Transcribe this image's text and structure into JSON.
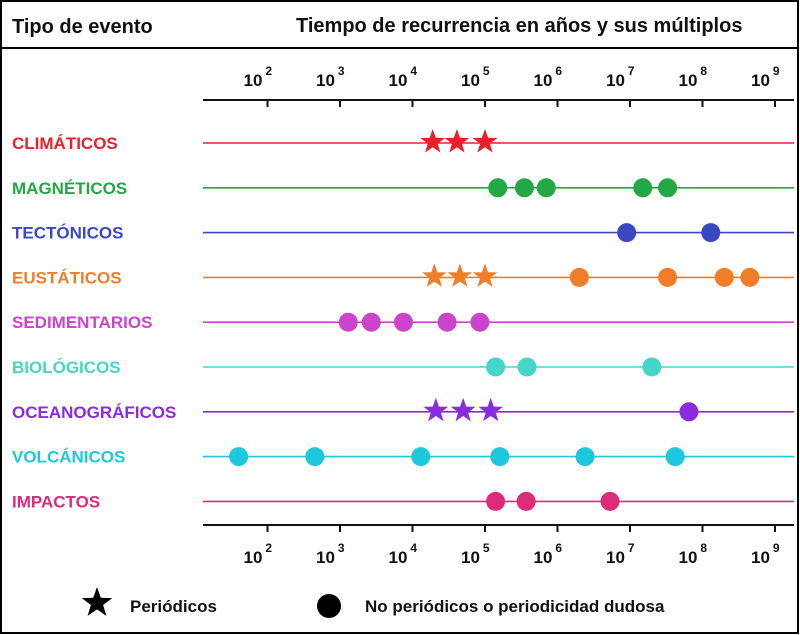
{
  "header": {
    "left": "Tipo de evento",
    "right": "Tiempo de recurrencia en años y sus múltiplos"
  },
  "chart_data": {
    "type": "scatter",
    "x_scale": "log",
    "xlim": [
      10,
      1000000000
    ],
    "x_ticks": [
      {
        "value": 100,
        "base": "10",
        "exp": "2"
      },
      {
        "value": 1000,
        "base": "10",
        "exp": "3"
      },
      {
        "value": 10000,
        "base": "10",
        "exp": "4"
      },
      {
        "value": 100000,
        "base": "10",
        "exp": "5"
      },
      {
        "value": 1000000,
        "base": "10",
        "exp": "6"
      },
      {
        "value": 10000000,
        "base": "10",
        "exp": "7"
      },
      {
        "value": 100000000,
        "base": "10",
        "exp": "8"
      },
      {
        "value": 1000000000,
        "base": "10",
        "exp": "9"
      }
    ],
    "categories": [
      {
        "name": "CLIMÁTICOS",
        "color": "#e8202a",
        "points": [
          {
            "x": 19000,
            "kind": "star"
          },
          {
            "x": 41000,
            "kind": "star"
          },
          {
            "x": 100000,
            "kind": "star"
          }
        ]
      },
      {
        "name": "MAGNÉTICOS",
        "color": "#22a845",
        "points": [
          {
            "x": 150000,
            "kind": "circle"
          },
          {
            "x": 350000,
            "kind": "circle"
          },
          {
            "x": 700000,
            "kind": "circle"
          },
          {
            "x": 15000000,
            "kind": "circle"
          },
          {
            "x": 33000000,
            "kind": "circle"
          }
        ]
      },
      {
        "name": "TECTÓNICOS",
        "color": "#3b48c4",
        "points": [
          {
            "x": 9000000,
            "kind": "circle"
          },
          {
            "x": 130000000,
            "kind": "circle"
          }
        ]
      },
      {
        "name": "EUSTÁTICOS",
        "color": "#f07d28",
        "points": [
          {
            "x": 20000,
            "kind": "star"
          },
          {
            "x": 45000,
            "kind": "star"
          },
          {
            "x": 100000,
            "kind": "star"
          },
          {
            "x": 2000000,
            "kind": "circle"
          },
          {
            "x": 33000000,
            "kind": "circle"
          },
          {
            "x": 200000000,
            "kind": "circle"
          },
          {
            "x": 450000000,
            "kind": "circle"
          }
        ]
      },
      {
        "name": "SEDIMENTARIOS",
        "color": "#cc44cc",
        "points": [
          {
            "x": 1300,
            "kind": "circle"
          },
          {
            "x": 2700,
            "kind": "circle"
          },
          {
            "x": 7500,
            "kind": "circle"
          },
          {
            "x": 30000,
            "kind": "circle"
          },
          {
            "x": 85000,
            "kind": "circle"
          }
        ]
      },
      {
        "name": "BIOLÓGICOS",
        "color": "#44d6c8",
        "points": [
          {
            "x": 140000,
            "kind": "circle"
          },
          {
            "x": 380000,
            "kind": "circle"
          },
          {
            "x": 20000000,
            "kind": "circle"
          }
        ]
      },
      {
        "name": "OCEANOGRÁFICOS",
        "color": "#8a2be2",
        "points": [
          {
            "x": 21000,
            "kind": "star"
          },
          {
            "x": 50000,
            "kind": "star"
          },
          {
            "x": 120000,
            "kind": "star"
          },
          {
            "x": 65000000,
            "kind": "circle"
          }
        ]
      },
      {
        "name": "VOLCÁNICOS",
        "color": "#1ec8dc",
        "points": [
          {
            "x": 40,
            "kind": "circle"
          },
          {
            "x": 450,
            "kind": "circle"
          },
          {
            "x": 13000,
            "kind": "circle"
          },
          {
            "x": 160000,
            "kind": "circle"
          },
          {
            "x": 2400000,
            "kind": "circle"
          },
          {
            "x": 42000000,
            "kind": "circle"
          }
        ]
      },
      {
        "name": "IMPACTOS",
        "color": "#dd2a7a",
        "points": [
          {
            "x": 140000,
            "kind": "circle"
          },
          {
            "x": 370000,
            "kind": "circle"
          },
          {
            "x": 5300000,
            "kind": "circle"
          }
        ]
      }
    ],
    "legend": [
      {
        "kind": "star",
        "label": "Periódicos"
      },
      {
        "kind": "circle",
        "label": "No periódicos o periodicidad dudosa"
      }
    ],
    "legend_position": "bottom"
  }
}
